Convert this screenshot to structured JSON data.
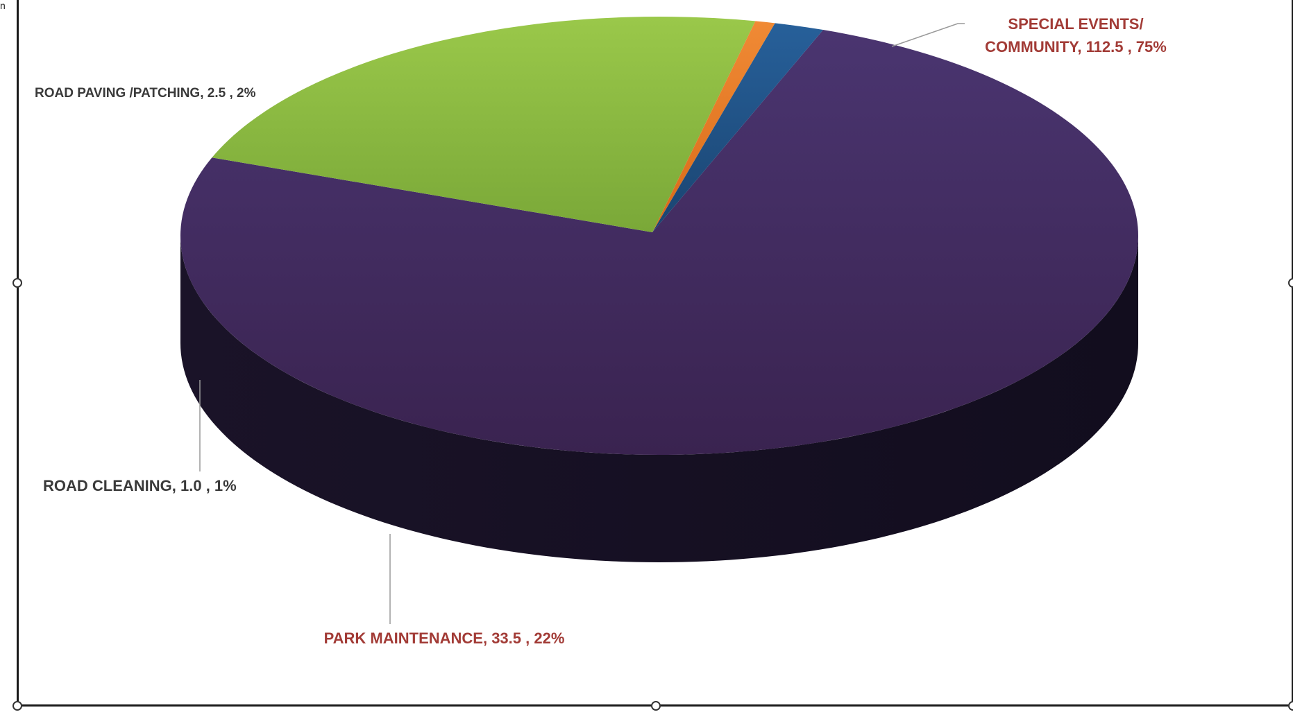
{
  "corner_glyph": "n",
  "colors": {
    "special_events": "#3f2a5a",
    "park_maintenance": "#8ab83e",
    "road_cleaning": "#e87722",
    "road_paving": "#1f4e79",
    "label_red": "#a23b36",
    "label_dark": "#3a3a3a",
    "leader_line": "#9a9a9a"
  },
  "chart_data": {
    "type": "pie",
    "style": "3d",
    "title": "",
    "slices": [
      {
        "key": "special_events",
        "label_lines": [
          "SPECIAL EVENTS/",
          "COMMUNITY,  112.5 , 75%"
        ],
        "value": 112.5,
        "percent": 75,
        "color": "#3f2a5a"
      },
      {
        "key": "park_maintenance",
        "label_lines": [
          "PARK MAINTENANCE,  33.5 , 22%"
        ],
        "value": 33.5,
        "percent": 22,
        "color": "#8ab83e"
      },
      {
        "key": "road_cleaning",
        "label_lines": [
          "ROAD CLEANING,  1.0 , 1%"
        ],
        "value": 1.0,
        "percent": 1,
        "color": "#e87722"
      },
      {
        "key": "road_paving",
        "label_lines": [
          "ROAD PAVING /PATCHING,  2.5 , 2%"
        ],
        "value": 2.5,
        "percent": 2,
        "color": "#1f4e79"
      }
    ],
    "legend": "none",
    "data_labels": "category, value, percent"
  }
}
